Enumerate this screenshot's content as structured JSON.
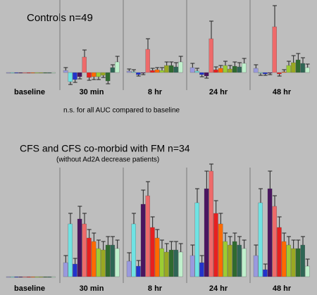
{
  "chart_data": [
    {
      "type": "bar",
      "title": "Controls n=49",
      "note": "n.s. for all AUC compared to baseline",
      "categories": [
        "baseline",
        "30 min",
        "8 hr",
        "24 hr",
        "48 hr"
      ],
      "ylim": [
        -27,
        103
      ],
      "series": [
        {
          "color": "#9a9ade",
          "values": [
            0,
            3,
            2,
            7,
            6
          ],
          "errors": [
            0,
            4,
            3,
            6,
            5
          ]
        },
        {
          "color": "#6fe3e3",
          "values": [
            0,
            -13,
            1,
            2,
            -1
          ],
          "errors": [
            0,
            4,
            3,
            4,
            3
          ]
        },
        {
          "color": "#2233cc",
          "values": [
            0,
            -10,
            -3,
            -3,
            -2
          ],
          "errors": [
            0,
            4,
            2,
            3,
            2
          ]
        },
        {
          "color": "#4a1560",
          "values": [
            0,
            -6,
            -1,
            -5,
            -1
          ],
          "errors": [
            0,
            3,
            2,
            3,
            2
          ]
        },
        {
          "color": "#ee6a6a",
          "values": [
            0,
            22,
            33,
            48,
            65
          ],
          "errors": [
            0,
            10,
            15,
            25,
            30
          ]
        },
        {
          "color": "#e82020",
          "values": [
            0,
            -7,
            3,
            4,
            -2
          ],
          "errors": [
            0,
            4,
            3,
            4,
            3
          ]
        },
        {
          "color": "#ff6a00",
          "values": [
            0,
            -6,
            4,
            6,
            1
          ],
          "errors": [
            0,
            4,
            3,
            4,
            3
          ]
        },
        {
          "color": "#9ccc33",
          "values": [
            0,
            -6,
            3,
            10,
            10
          ],
          "errors": [
            0,
            4,
            4,
            6,
            6
          ]
        },
        {
          "color": "#99a822",
          "values": [
            0,
            -4,
            10,
            5,
            14
          ],
          "errors": [
            0,
            3,
            5,
            5,
            10
          ]
        },
        {
          "color": "#2f6a2f",
          "values": [
            0,
            -12,
            10,
            9,
            18
          ],
          "errors": [
            0,
            4,
            5,
            6,
            9
          ]
        },
        {
          "color": "#2e6655",
          "values": [
            0,
            7,
            8,
            8,
            13
          ],
          "errors": [
            0,
            4,
            6,
            6,
            8
          ]
        },
        {
          "color": "#bff0cc",
          "values": [
            0,
            15,
            15,
            13,
            7
          ],
          "errors": [
            0,
            8,
            8,
            7,
            5
          ]
        }
      ]
    },
    {
      "type": "bar",
      "title": "CFS and CFS co-morbid with FM n=34",
      "subtitle": "(without Ad2A decrease patients)",
      "categories": [
        "baseline",
        "30 min",
        "8 hr",
        "24 hr",
        "48 hr"
      ],
      "ylim": [
        -7,
        163
      ],
      "series": [
        {
          "color": "#9a9ade",
          "values": [
            0,
            20,
            22,
            30,
            30
          ],
          "errors": [
            0,
            10,
            12,
            15,
            15
          ]
        },
        {
          "color": "#6fe3e3",
          "values": [
            0,
            75,
            75,
            105,
            105
          ],
          "errors": [
            0,
            15,
            15,
            20,
            20
          ]
        },
        {
          "color": "#2233cc",
          "values": [
            0,
            18,
            15,
            20,
            10
          ],
          "errors": [
            0,
            8,
            8,
            10,
            8
          ]
        },
        {
          "color": "#4a1560",
          "values": [
            0,
            82,
            103,
            125,
            125
          ],
          "errors": [
            0,
            18,
            20,
            25,
            25
          ]
        },
        {
          "color": "#ee6a6a",
          "values": [
            0,
            75,
            115,
            150,
            100
          ],
          "errors": [
            0,
            15,
            20,
            10,
            15
          ]
        },
        {
          "color": "#e82020",
          "values": [
            0,
            55,
            70,
            90,
            70
          ],
          "errors": [
            0,
            12,
            15,
            18,
            15
          ]
        },
        {
          "color": "#ff6a00",
          "values": [
            0,
            50,
            55,
            75,
            50
          ],
          "errors": [
            0,
            12,
            12,
            15,
            12
          ]
        },
        {
          "color": "#9ccc33",
          "values": [
            0,
            40,
            40,
            50,
            45
          ],
          "errors": [
            0,
            12,
            12,
            12,
            12
          ]
        },
        {
          "color": "#99a822",
          "values": [
            0,
            38,
            35,
            45,
            40
          ],
          "errors": [
            0,
            12,
            12,
            12,
            12
          ]
        },
        {
          "color": "#2f6a2f",
          "values": [
            0,
            45,
            38,
            50,
            40
          ],
          "errors": [
            0,
            12,
            12,
            12,
            12
          ]
        },
        {
          "color": "#2e6655",
          "values": [
            0,
            45,
            38,
            45,
            45
          ],
          "errors": [
            0,
            12,
            12,
            12,
            12
          ]
        },
        {
          "color": "#bff0cc",
          "values": [
            0,
            40,
            35,
            40,
            15
          ],
          "errors": [
            0,
            12,
            12,
            12,
            10
          ]
        }
      ]
    }
  ]
}
